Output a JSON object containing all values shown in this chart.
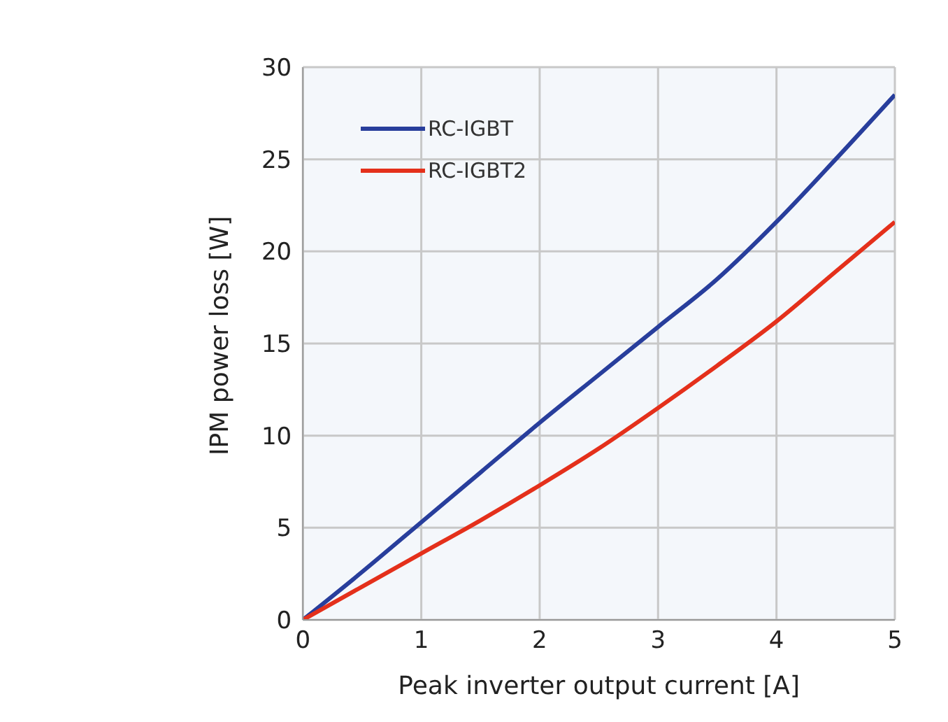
{
  "chart_data": {
    "type": "line",
    "xlabel": "Peak inverter output current [A]",
    "ylabel": "IPM power loss [W]",
    "x": [
      0,
      0.5,
      1,
      1.5,
      2,
      2.5,
      3,
      3.5,
      4,
      4.5,
      5
    ],
    "series": [
      {
        "name": "RC-IGBT",
        "color": "#283e9c",
        "values": [
          0,
          2.6,
          5.3,
          8,
          10.7,
          13.3,
          15.9,
          18.5,
          21.6,
          25,
          28.5
        ]
      },
      {
        "name": "RC-IGBT2",
        "color": "#e4301b",
        "values": [
          0,
          1.8,
          3.6,
          5.4,
          7.3,
          9.3,
          11.5,
          13.8,
          16.2,
          18.9,
          21.6
        ]
      }
    ],
    "xlim": [
      0,
      5
    ],
    "xticks": [
      0,
      1,
      2,
      3,
      4,
      5
    ],
    "ylim": [
      0,
      30
    ],
    "yticks": [
      0,
      5,
      10,
      15,
      20,
      25,
      30
    ],
    "grid": true,
    "legend": "top left",
    "marker": "none",
    "line_style": "solid"
  }
}
